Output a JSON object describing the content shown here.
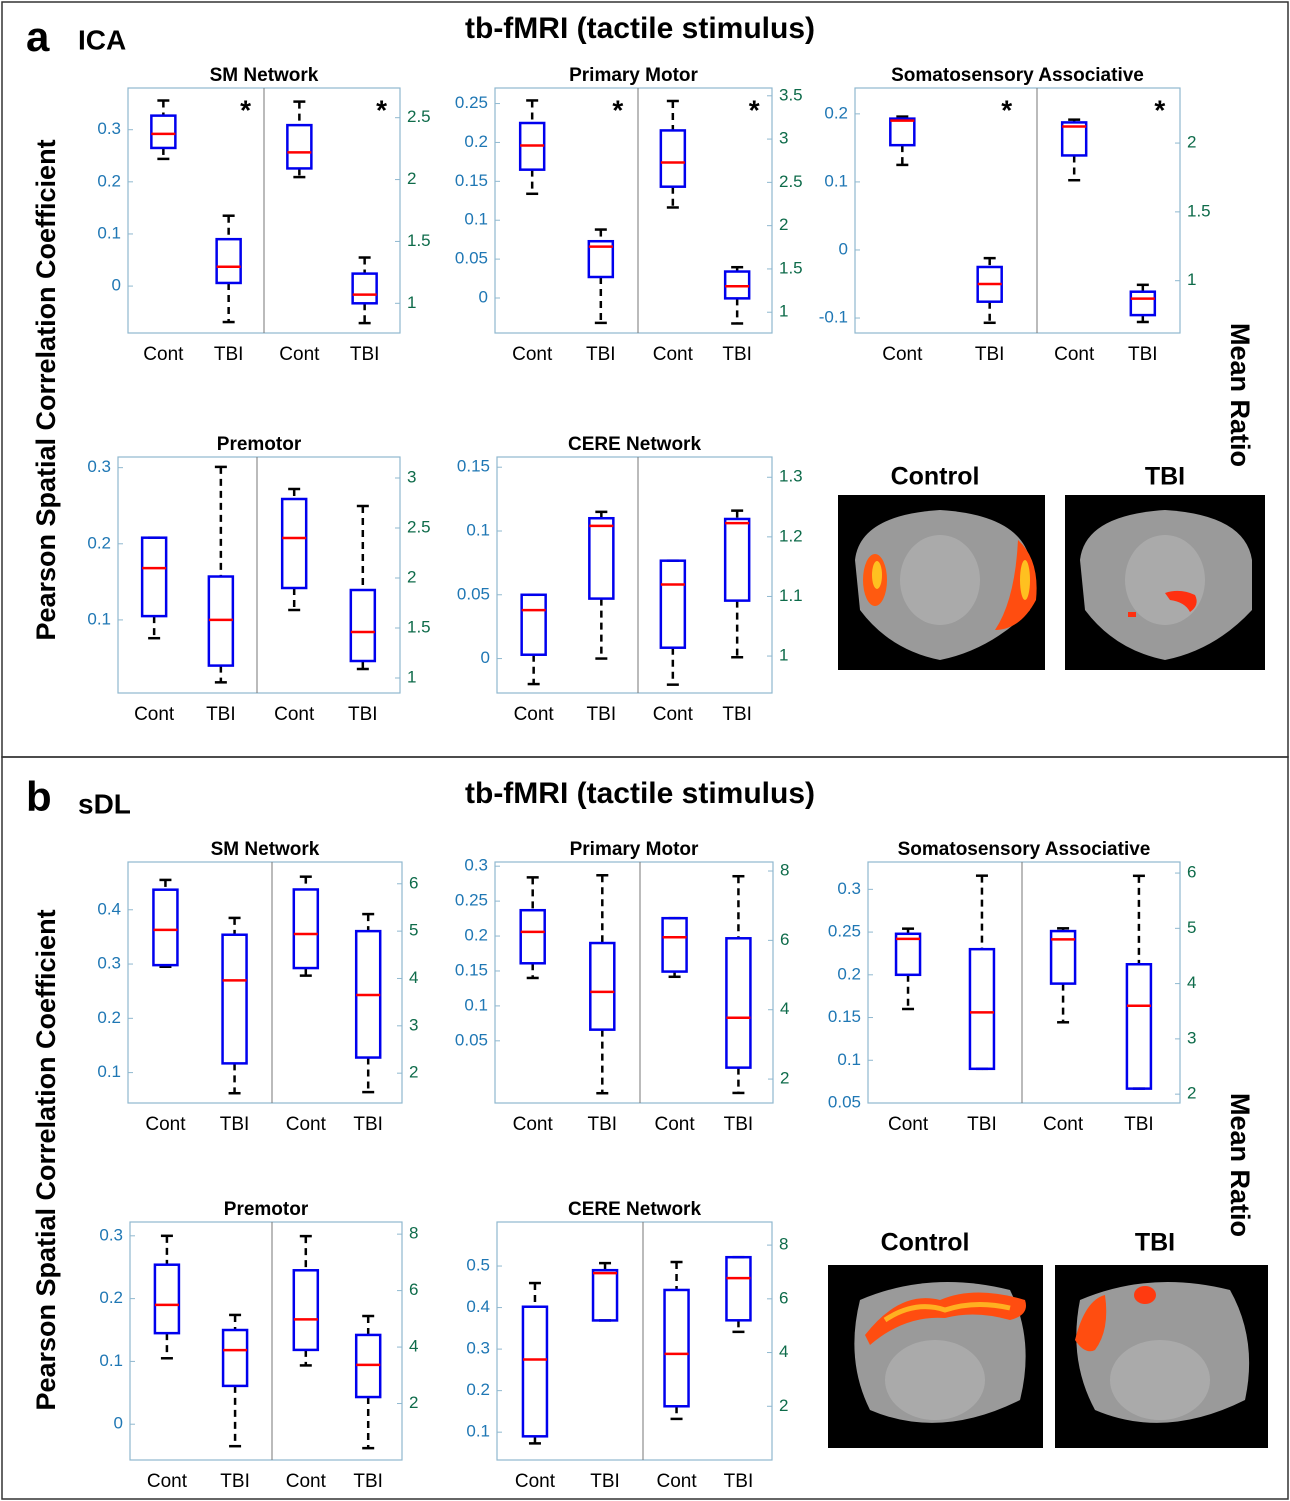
{
  "style": {
    "box_color": "#0000ee",
    "median_color": "#ff0000",
    "whisker_color": "#000000",
    "y_color": "#1f77b4",
    "y2_color": "#0e6b4a",
    "frame_color": "#8fb8cf"
  },
  "sections": [
    {
      "label": "a",
      "method": "ICA",
      "title": "tb-fMRI (tactile stimulus)",
      "ylabel": "Pearson Spatial Correlation Coefficient",
      "y2label": "Mean Ratio",
      "image_labels": [
        "Control",
        "TBI"
      ]
    },
    {
      "label": "b",
      "method": "sDL",
      "title": "tb-fMRI (tactile stimulus)",
      "ylabel": "Pearson Spatial Correlation Coefficient",
      "y2label": "Mean Ratio",
      "image_labels": [
        "Control",
        "TBI"
      ]
    }
  ],
  "chart_data": [
    {
      "type": "box",
      "title": "SM Network",
      "categories": [
        "Cont",
        "TBI",
        "Cont",
        "TBI"
      ],
      "ylim": [
        -0.09,
        0.38
      ],
      "yticks": [
        0,
        0.1,
        0.2,
        0.3
      ],
      "y2lim": [
        0.76,
        2.74
      ],
      "y2ticks": [
        1,
        1.5,
        2,
        2.5
      ],
      "boxes": [
        {
          "axis": "y",
          "min": 0.244,
          "q1": 0.265,
          "median": 0.292,
          "q3": 0.327,
          "max": 0.356
        },
        {
          "axis": "y",
          "min": -0.069,
          "q1": 0.006,
          "median": 0.037,
          "q3": 0.09,
          "max": 0.135,
          "annotation": "*"
        },
        {
          "axis": "y2",
          "min": 2.02,
          "q1": 2.09,
          "median": 2.22,
          "q3": 2.44,
          "max": 2.63
        },
        {
          "axis": "y2",
          "min": 0.84,
          "q1": 1.0,
          "median": 1.07,
          "q3": 1.24,
          "max": 1.37,
          "annotation": "*"
        }
      ]
    },
    {
      "type": "box",
      "title": "Primary Motor",
      "categories": [
        "Cont",
        "TBI",
        "Cont",
        "TBI"
      ],
      "ylim": [
        -0.045,
        0.27
      ],
      "yticks": [
        0,
        0.05,
        0.1,
        0.15,
        0.2,
        0.25
      ],
      "y2lim": [
        0.76,
        3.59
      ],
      "y2ticks": [
        1,
        1.5,
        2,
        2.5,
        3,
        3.5
      ],
      "boxes": [
        {
          "axis": "y",
          "min": 0.134,
          "q1": 0.165,
          "median": 0.196,
          "q3": 0.225,
          "max": 0.254
        },
        {
          "axis": "y",
          "min": -0.032,
          "q1": 0.027,
          "median": 0.066,
          "q3": 0.073,
          "max": 0.088,
          "annotation": "*"
        },
        {
          "axis": "y2",
          "min": 2.21,
          "q1": 2.45,
          "median": 2.73,
          "q3": 3.1,
          "max": 3.44
        },
        {
          "axis": "y2",
          "min": 0.87,
          "q1": 1.16,
          "median": 1.3,
          "q3": 1.47,
          "max": 1.52,
          "annotation": "*"
        }
      ]
    },
    {
      "type": "box",
      "title": "Somatosensory Associative",
      "categories": [
        "Cont",
        "TBI",
        "Cont",
        "TBI"
      ],
      "ylim": [
        -0.122,
        0.238
      ],
      "yticks": [
        -0.1,
        0,
        0.1,
        0.2
      ],
      "y2lim": [
        0.62,
        2.4
      ],
      "y2ticks": [
        1,
        1.5,
        2
      ],
      "boxes": [
        {
          "axis": "y",
          "min": 0.125,
          "q1": 0.154,
          "median": 0.19,
          "q3": 0.193,
          "max": 0.196
        },
        {
          "axis": "y",
          "min": -0.107,
          "q1": -0.076,
          "median": -0.05,
          "q3": -0.025,
          "max": -0.012,
          "annotation": "*"
        },
        {
          "axis": "y2",
          "min": 1.73,
          "q1": 1.91,
          "median": 2.12,
          "q3": 2.15,
          "max": 2.17
        },
        {
          "axis": "y2",
          "min": 0.7,
          "q1": 0.75,
          "median": 0.87,
          "q3": 0.92,
          "max": 0.97,
          "annotation": "*"
        }
      ]
    },
    {
      "type": "box",
      "title": "Premotor",
      "categories": [
        "Cont",
        "TBI",
        "Cont",
        "TBI"
      ],
      "ylim": [
        0.004,
        0.314
      ],
      "yticks": [
        0.1,
        0.2,
        0.3
      ],
      "y2lim": [
        0.85,
        3.21
      ],
      "y2ticks": [
        1,
        1.5,
        2,
        2.5,
        3
      ],
      "boxes": [
        {
          "axis": "y",
          "min": 0.076,
          "q1": 0.105,
          "median": 0.168,
          "q3": 0.208,
          "max": 0.208
        },
        {
          "axis": "y",
          "min": 0.018,
          "q1": 0.04,
          "median": 0.1,
          "q3": 0.157,
          "max": 0.301
        },
        {
          "axis": "y2",
          "min": 1.68,
          "q1": 1.9,
          "median": 2.4,
          "q3": 2.79,
          "max": 2.89
        },
        {
          "axis": "y2",
          "min": 1.09,
          "q1": 1.17,
          "median": 1.46,
          "q3": 1.88,
          "max": 2.72
        }
      ]
    },
    {
      "type": "box",
      "title": "CERE Network",
      "categories": [
        "Cont",
        "TBI",
        "Cont",
        "TBI"
      ],
      "ylim": [
        -0.027,
        0.158
      ],
      "yticks": [
        0,
        0.05,
        0.1,
        0.15
      ],
      "y2lim": [
        0.938,
        1.334
      ],
      "y2ticks": [
        1,
        1.1,
        1.2,
        1.3
      ],
      "boxes": [
        {
          "axis": "y",
          "min": -0.02,
          "q1": 0.003,
          "median": 0.038,
          "q3": 0.05,
          "max": 0.05
        },
        {
          "axis": "y",
          "min": 0,
          "q1": 0.047,
          "median": 0.104,
          "q3": 0.11,
          "max": 0.115
        },
        {
          "axis": "y2",
          "min": 0.952,
          "q1": 1.014,
          "median": 1.12,
          "q3": 1.16,
          "max": 1.16
        },
        {
          "axis": "y2",
          "min": 0.998,
          "q1": 1.093,
          "median": 1.223,
          "q3": 1.23,
          "max": 1.244
        }
      ]
    },
    {
      "type": "box",
      "title": "SM Network",
      "categories": [
        "Cont",
        "TBI",
        "Cont",
        "TBI"
      ],
      "ylim": [
        0.044,
        0.488
      ],
      "yticks": [
        0.1,
        0.2,
        0.3,
        0.4
      ],
      "y2lim": [
        1.37,
        6.46
      ],
      "y2ticks": [
        2,
        3,
        4,
        5,
        6
      ],
      "boxes": [
        {
          "axis": "y",
          "min": 0.295,
          "q1": 0.298,
          "median": 0.363,
          "q3": 0.437,
          "max": 0.455
        },
        {
          "axis": "y",
          "min": 0.062,
          "q1": 0.117,
          "median": 0.27,
          "q3": 0.354,
          "max": 0.385
        },
        {
          "axis": "y2",
          "min": 4.06,
          "q1": 4.22,
          "median": 4.94,
          "q3": 5.88,
          "max": 6.15
        },
        {
          "axis": "y2",
          "min": 1.6,
          "q1": 2.33,
          "median": 3.65,
          "q3": 5.0,
          "max": 5.36
        }
      ]
    },
    {
      "type": "box",
      "title": "Primary Motor",
      "categories": [
        "Cont",
        "TBI",
        "Cont",
        "TBI"
      ],
      "ylim": [
        -0.039,
        0.306
      ],
      "yticks": [
        0.05,
        0.1,
        0.15,
        0.2,
        0.25,
        0.3
      ],
      "y2lim": [
        1.31,
        8.26
      ],
      "y2ticks": [
        2,
        4,
        6,
        8
      ],
      "boxes": [
        {
          "axis": "y",
          "min": 0.14,
          "q1": 0.161,
          "median": 0.206,
          "q3": 0.237,
          "max": 0.284
        },
        {
          "axis": "y",
          "min": -0.025,
          "q1": 0.066,
          "median": 0.12,
          "q3": 0.19,
          "max": 0.287
        },
        {
          "axis": "y2",
          "min": 4.95,
          "q1": 5.1,
          "median": 6.09,
          "q3": 6.64,
          "max": 6.64
        },
        {
          "axis": "y2",
          "min": 1.6,
          "q1": 2.33,
          "median": 3.77,
          "q3": 6.06,
          "max": 7.85
        }
      ]
    },
    {
      "type": "box",
      "title": "Somatosensory Associative",
      "categories": [
        "Cont",
        "TBI",
        "Cont",
        "TBI"
      ],
      "ylim": [
        0.05,
        0.332
      ],
      "yticks": [
        0.05,
        0.1,
        0.15,
        0.2,
        0.25,
        0.3
      ],
      "y2lim": [
        1.84,
        6.2
      ],
      "y2ticks": [
        2,
        3,
        4,
        5,
        6
      ],
      "boxes": [
        {
          "axis": "y",
          "min": 0.16,
          "q1": 0.2,
          "median": 0.242,
          "q3": 0.248,
          "max": 0.254
        },
        {
          "axis": "y",
          "min": 0.09,
          "q1": 0.09,
          "median": 0.156,
          "q3": 0.23,
          "max": 0.316
        },
        {
          "axis": "y2",
          "min": 3.3,
          "q1": 4.0,
          "median": 4.8,
          "q3": 4.95,
          "max": 5.0
        },
        {
          "axis": "y2",
          "min": 2.1,
          "q1": 2.1,
          "median": 3.6,
          "q3": 4.35,
          "max": 5.95
        }
      ]
    },
    {
      "type": "box",
      "title": "Premotor",
      "categories": [
        "Cont",
        "TBI",
        "Cont",
        "TBI"
      ],
      "ylim": [
        -0.057,
        0.322
      ],
      "yticks": [
        0,
        0.1,
        0.2,
        0.3
      ],
      "y2lim": [
        0,
        8.43
      ],
      "y2ticks": [
        2,
        4,
        6,
        8
      ],
      "boxes": [
        {
          "axis": "y",
          "min": 0.105,
          "q1": 0.145,
          "median": 0.19,
          "q3": 0.254,
          "max": 0.3
        },
        {
          "axis": "y",
          "min": -0.035,
          "q1": 0.061,
          "median": 0.118,
          "q3": 0.15,
          "max": 0.174
        },
        {
          "axis": "y2",
          "min": 3.35,
          "q1": 3.9,
          "median": 4.98,
          "q3": 6.72,
          "max": 7.93
        },
        {
          "axis": "y2",
          "min": 0.42,
          "q1": 2.23,
          "median": 3.37,
          "q3": 4.43,
          "max": 5.1
        }
      ]
    },
    {
      "type": "box",
      "title": "CERE Network",
      "categories": [
        "Cont",
        "TBI",
        "Cont",
        "TBI"
      ],
      "ylim": [
        0.033,
        0.606
      ],
      "yticks": [
        0.1,
        0.2,
        0.3,
        0.4,
        0.5
      ],
      "y2lim": [
        0,
        8.86
      ],
      "y2ticks": [
        2,
        4,
        6,
        8
      ],
      "boxes": [
        {
          "axis": "y",
          "min": 0.073,
          "q1": 0.09,
          "median": 0.275,
          "q3": 0.402,
          "max": 0.459
        },
        {
          "axis": "y",
          "min": 0.369,
          "q1": 0.369,
          "median": 0.483,
          "q3": 0.49,
          "max": 0.507
        },
        {
          "axis": "y2",
          "min": 1.53,
          "q1": 2.0,
          "median": 3.95,
          "q3": 6.33,
          "max": 7.37
        },
        {
          "axis": "y2",
          "min": 4.77,
          "q1": 5.2,
          "median": 6.77,
          "q3": 7.55,
          "max": 7.55
        }
      ]
    }
  ]
}
